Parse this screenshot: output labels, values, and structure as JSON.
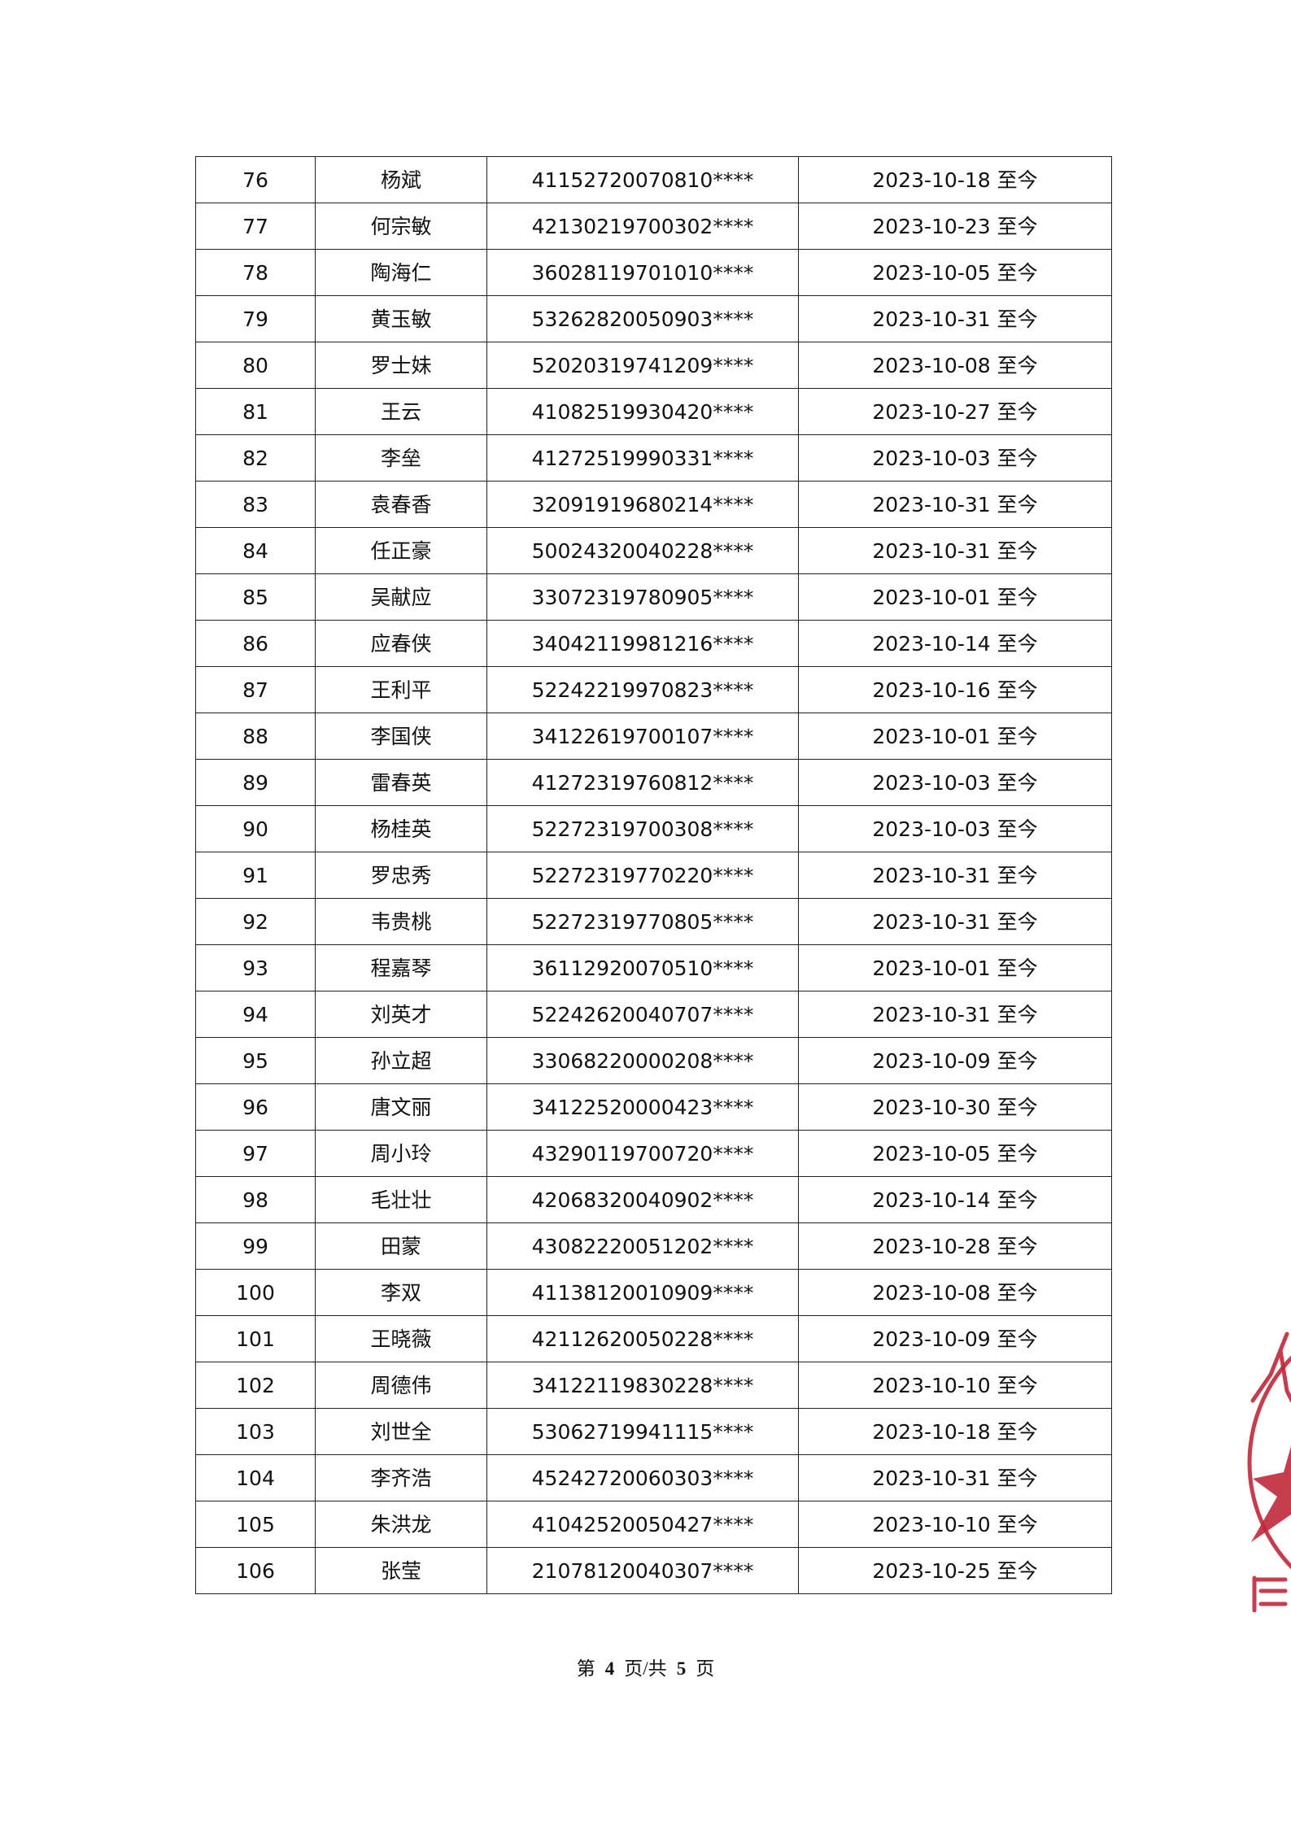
{
  "table": {
    "rows": [
      [
        "76",
        "杨斌",
        "41152720070810****",
        "2023-10-18 至今"
      ],
      [
        "77",
        "何宗敏",
        "42130219700302****",
        "2023-10-23 至今"
      ],
      [
        "78",
        "陶海仁",
        "36028119701010****",
        "2023-10-05 至今"
      ],
      [
        "79",
        "黄玉敏",
        "53262820050903****",
        "2023-10-31 至今"
      ],
      [
        "80",
        "罗士妹",
        "52020319741209****",
        "2023-10-08 至今"
      ],
      [
        "81",
        "王云",
        "41082519930420****",
        "2023-10-27 至今"
      ],
      [
        "82",
        "李垒",
        "41272519990331****",
        "2023-10-03 至今"
      ],
      [
        "83",
        "袁春香",
        "32091919680214****",
        "2023-10-31 至今"
      ],
      [
        "84",
        "任正豪",
        "50024320040228****",
        "2023-10-31 至今"
      ],
      [
        "85",
        "吴献应",
        "33072319780905****",
        "2023-10-01 至今"
      ],
      [
        "86",
        "应春侠",
        "34042119981216****",
        "2023-10-14 至今"
      ],
      [
        "87",
        "王利平",
        "52242219970823****",
        "2023-10-16 至今"
      ],
      [
        "88",
        "李国侠",
        "34122619700107****",
        "2023-10-01 至今"
      ],
      [
        "89",
        "雷春英",
        "41272319760812****",
        "2023-10-03 至今"
      ],
      [
        "90",
        "杨桂英",
        "52272319700308****",
        "2023-10-03 至今"
      ],
      [
        "91",
        "罗忠秀",
        "52272319770220****",
        "2023-10-31 至今"
      ],
      [
        "92",
        "韦贵桃",
        "52272319770805****",
        "2023-10-31 至今"
      ],
      [
        "93",
        "程嘉琴",
        "36112920070510****",
        "2023-10-01 至今"
      ],
      [
        "94",
        "刘英才",
        "52242620040707****",
        "2023-10-31 至今"
      ],
      [
        "95",
        "孙立超",
        "33068220000208****",
        "2023-10-09 至今"
      ],
      [
        "96",
        "唐文丽",
        "34122520000423****",
        "2023-10-30 至今"
      ],
      [
        "97",
        "周小玲",
        "43290119700720****",
        "2023-10-05 至今"
      ],
      [
        "98",
        "毛壮壮",
        "42068320040902****",
        "2023-10-14 至今"
      ],
      [
        "99",
        "田蒙",
        "43082220051202****",
        "2023-10-28 至今"
      ],
      [
        "100",
        "李双",
        "41138120010909****",
        "2023-10-08 至今"
      ],
      [
        "101",
        "王晓薇",
        "42112620050228****",
        "2023-10-09 至今"
      ],
      [
        "102",
        "周德伟",
        "34122119830228****",
        "2023-10-10 至今"
      ],
      [
        "103",
        "刘世全",
        "53062719941115****",
        "2023-10-18 至今"
      ],
      [
        "104",
        "李齐浩",
        "45242720060303****",
        "2023-10-31 至今"
      ],
      [
        "105",
        "朱洪龙",
        "41042520050427****",
        "2023-10-10 至今"
      ],
      [
        "106",
        "张莹",
        "21078120040307****",
        "2023-10-25 至今"
      ]
    ]
  },
  "footer": {
    "prefix": "第",
    "current_page": "4",
    "middle": "页/共",
    "total_pages": "5",
    "suffix": "页"
  },
  "stamp": {
    "color": "#c0283a",
    "visible_text": "人 民"
  }
}
